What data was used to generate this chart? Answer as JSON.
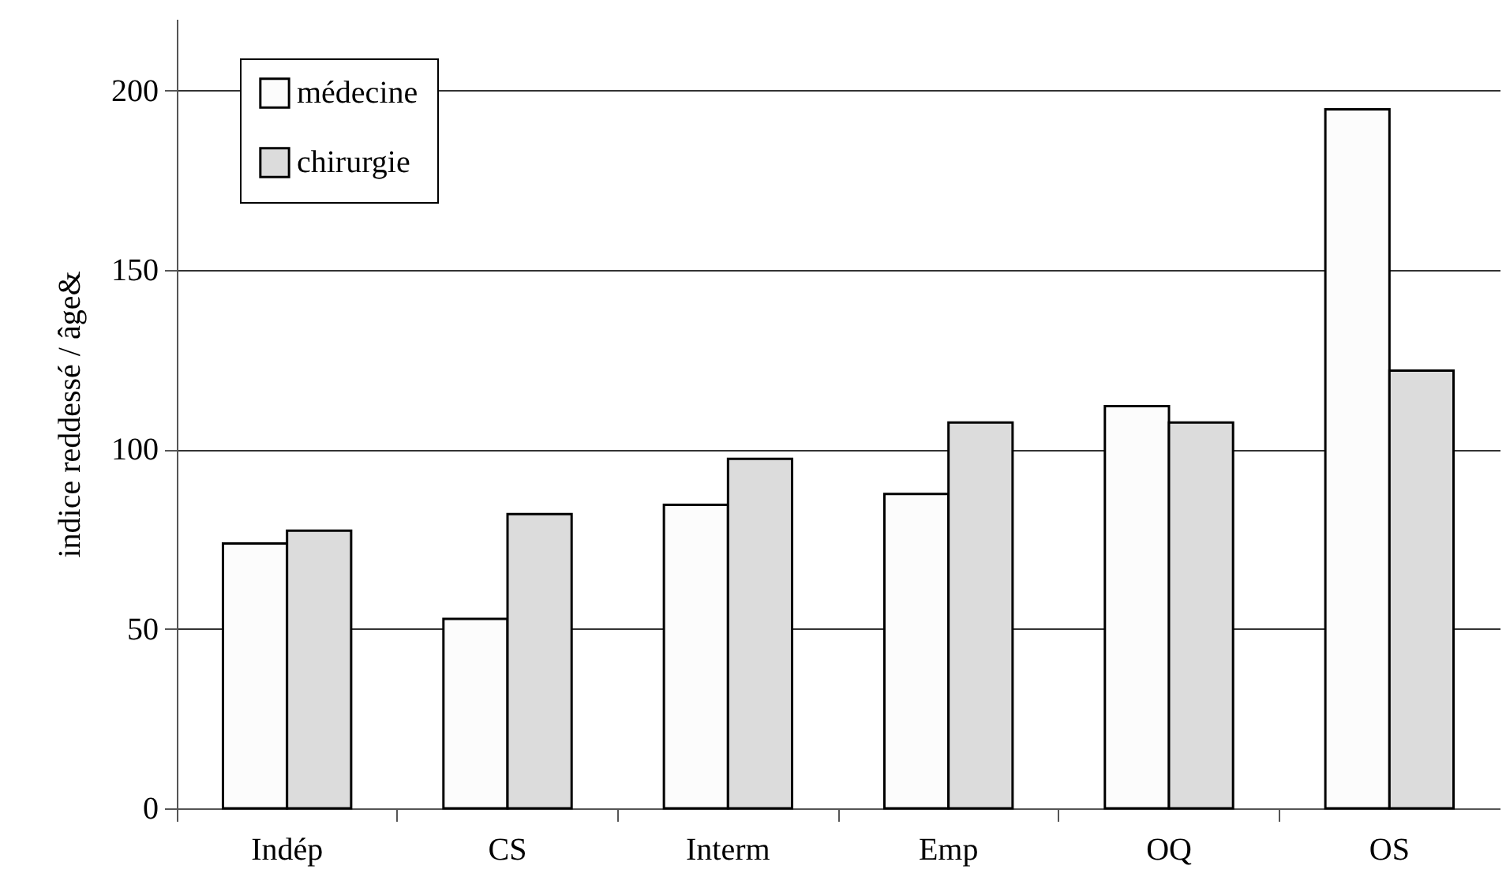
{
  "chart_data": {
    "type": "bar",
    "ylabel": "indice reddessé / âge&",
    "categories": [
      "Indép",
      "CS",
      "Interm",
      "Emp",
      "OQ",
      "OS"
    ],
    "series": [
      {
        "name": "médecine",
        "color": "#fcfcfc",
        "values": [
          73.8,
          52.8,
          84.6,
          87.6,
          112.1,
          194.8
        ]
      },
      {
        "name": "chirurgie",
        "color": "#dcdcdc",
        "values": [
          77.4,
          82.0,
          97.4,
          107.5,
          107.5,
          122.0
        ]
      }
    ],
    "ylim": [
      0,
      220
    ],
    "yticks": [
      0,
      50,
      100,
      150,
      200
    ],
    "grid": "y",
    "legend": "top left"
  }
}
